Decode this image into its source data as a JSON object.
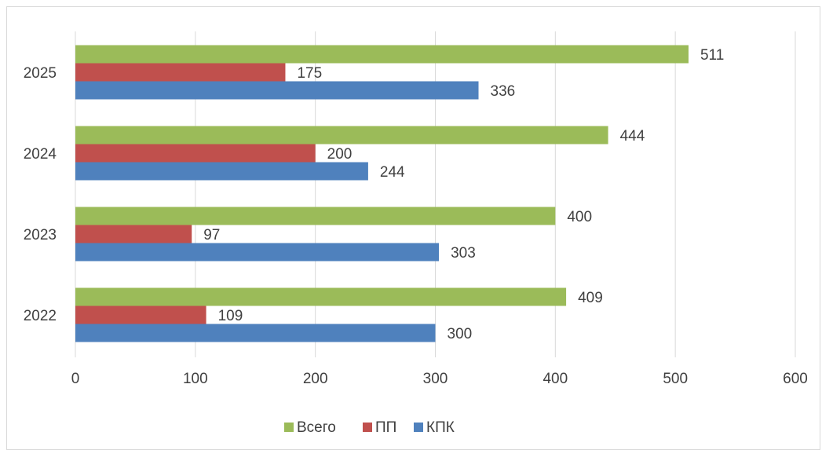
{
  "chart_data": {
    "type": "bar",
    "orientation": "horizontal",
    "categories": [
      "2022",
      "2023",
      "2024",
      "2025"
    ],
    "series": [
      {
        "name": "Всего",
        "values": [
          409,
          400,
          444,
          511
        ],
        "color": "#9BBB59"
      },
      {
        "name": "ПП",
        "values": [
          109,
          97,
          200,
          175
        ],
        "color": "#C0504D"
      },
      {
        "name": "КПК",
        "values": [
          300,
          303,
          244,
          336
        ],
        "color": "#4F81BD"
      }
    ],
    "xlim": [
      0,
      600
    ],
    "x_ticks": [
      "0",
      "100",
      "200",
      "300",
      "400",
      "500",
      "600"
    ],
    "grid": true,
    "data_labels": true,
    "legend_position": "bottom"
  }
}
